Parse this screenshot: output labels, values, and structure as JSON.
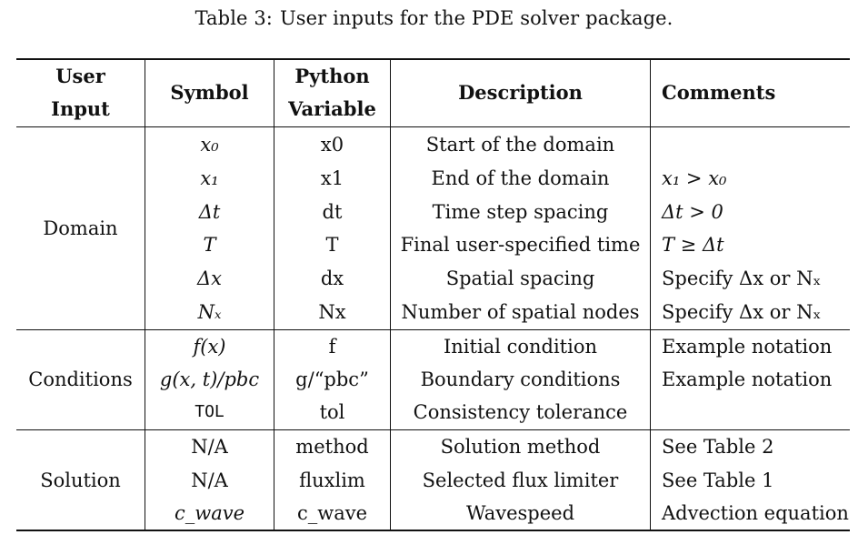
{
  "caption": {
    "label": "Table 3:",
    "text": "User inputs for the PDE solver package."
  },
  "headers": {
    "user_input_line1": "User",
    "user_input_line2": "Input",
    "symbol": "Symbol",
    "python_line1": "Python",
    "python_line2": "Variable",
    "description": "Description",
    "comments": "Comments"
  },
  "groups": {
    "domain": {
      "label": "Domain",
      "rows": [
        {
          "symbol": "x₀",
          "python": "x0",
          "description": "Start of the domain",
          "comment": ""
        },
        {
          "symbol": "x₁",
          "python": "x1",
          "description": "End of the domain",
          "comment": "x₁ > x₀"
        },
        {
          "symbol": "Δt",
          "python": "dt",
          "description": "Time step spacing",
          "comment": "Δt > 0"
        },
        {
          "symbol": "T",
          "python": "T",
          "description": "Final user-specified time",
          "comment": "T ≥ Δt"
        },
        {
          "symbol": "Δx",
          "python": "dx",
          "description": "Spatial spacing",
          "comment": "Specify Δx or Nₓ"
        },
        {
          "symbol": "Nₓ",
          "python": "Nx",
          "description": "Number of spatial nodes",
          "comment": "Specify Δx or Nₓ"
        }
      ]
    },
    "conditions": {
      "label": "Conditions",
      "rows": [
        {
          "symbol": "f(x)",
          "python": "f",
          "description": "Initial condition",
          "comment": "Example notation"
        },
        {
          "symbol": "g(x, t)/pbc",
          "python": "g/“pbc”",
          "description": "Boundary conditions",
          "comment": "Example notation"
        },
        {
          "symbol": "TOL",
          "python": "tol",
          "description": "Consistency tolerance",
          "comment": ""
        }
      ]
    },
    "solution": {
      "label": "Solution",
      "rows": [
        {
          "symbol": "N/A",
          "python": "method",
          "description": "Solution method",
          "comment": "See Table 2"
        },
        {
          "symbol": "N/A",
          "python": "fluxlim",
          "description": "Selected flux limiter",
          "comment": "See Table 1"
        },
        {
          "symbol": "c_wave",
          "python": "c_wave",
          "description": "Wavespeed",
          "comment": "Advection equation"
        }
      ]
    }
  }
}
